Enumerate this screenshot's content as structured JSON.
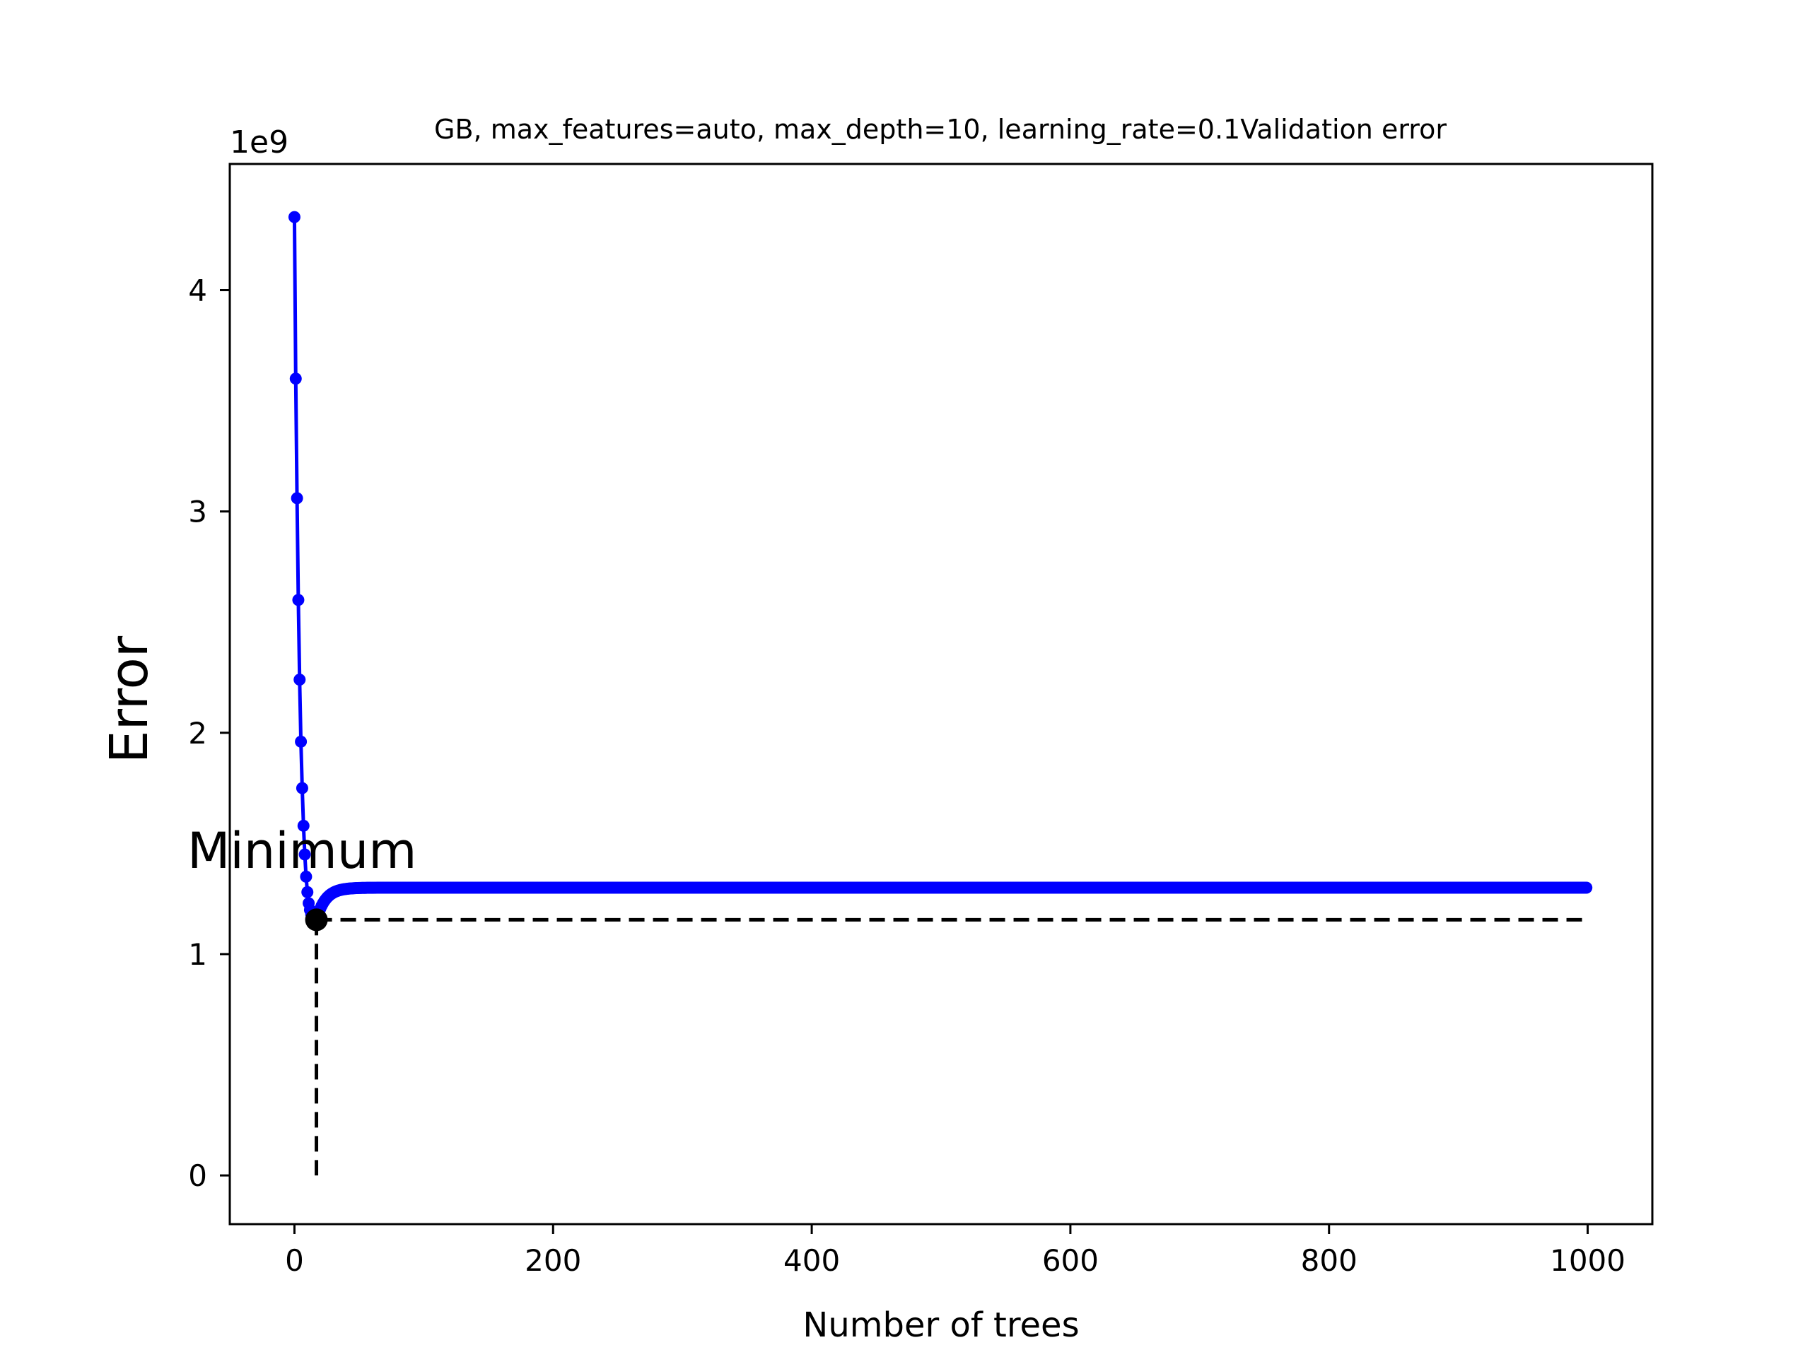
{
  "chart_data": {
    "type": "line",
    "title": "GB, max_features=auto, max_depth=10, learning_rate=0.1Validation error",
    "xlabel": "Number of trees",
    "ylabel": "Error",
    "y_offset_label": "1e9",
    "xlim": [
      -50,
      1050
    ],
    "ylim": [
      -0.22,
      4.57
    ],
    "x_ticks": [
      0,
      200,
      400,
      600,
      800,
      1000
    ],
    "x_tick_labels": [
      "0",
      "200",
      "400",
      "600",
      "800",
      "1000"
    ],
    "y_ticks": [
      0,
      1,
      2,
      3,
      4
    ],
    "y_tick_labels": [
      "0",
      "1",
      "2",
      "3",
      "4"
    ],
    "grid": false,
    "series": [
      {
        "color": "#0000ff",
        "marker": "dot",
        "curve": {
          "start_points": [
            [
              0,
              4.33
            ],
            [
              1,
              3.6
            ],
            [
              2,
              3.06
            ],
            [
              3,
              2.6
            ],
            [
              4,
              2.24
            ],
            [
              5,
              1.96
            ],
            [
              6,
              1.75
            ],
            [
              7,
              1.58
            ],
            [
              8,
              1.45
            ],
            [
              9,
              1.35
            ],
            [
              10,
              1.28
            ],
            [
              11,
              1.23
            ],
            [
              12,
              1.2
            ],
            [
              13,
              1.18
            ],
            [
              14,
              1.17
            ],
            [
              15,
              1.16
            ],
            [
              16,
              1.155
            ],
            [
              17,
              1.155
            ]
          ],
          "x_end": 999,
          "asymptote": 1.3,
          "decay": 7
        }
      }
    ],
    "minimum": {
      "x": 17,
      "y": 1.155,
      "label": "Minimum"
    }
  }
}
